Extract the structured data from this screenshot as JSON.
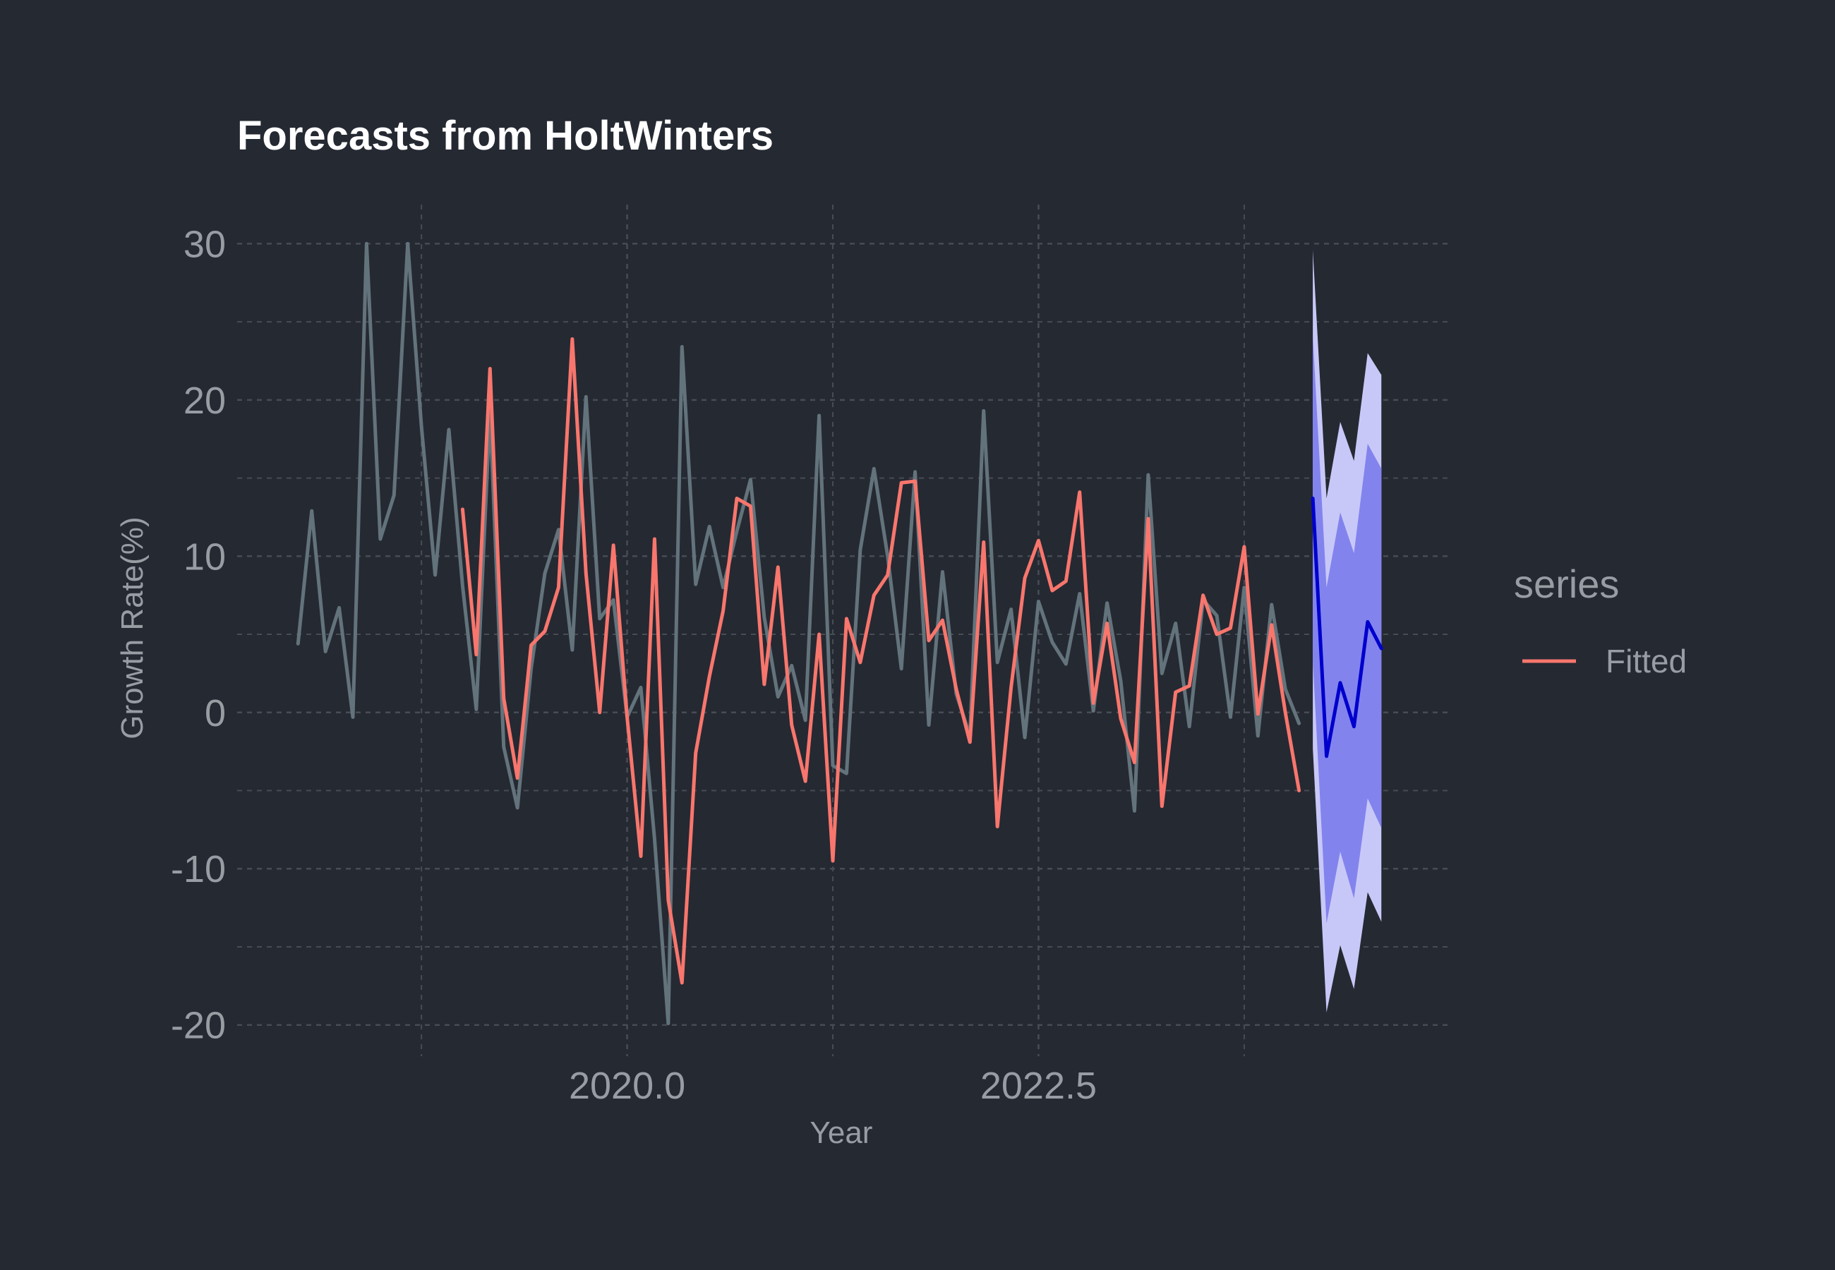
{
  "chart_data": {
    "type": "line",
    "title": "Forecasts from HoltWinters",
    "xlabel": "Year",
    "ylabel": "Growth Rate(%)",
    "xlim": [
      2017.63,
      2024.99
    ],
    "ylim": [
      -22,
      32.5
    ],
    "x_ticks": [
      2020.0,
      2022.5
    ],
    "x_tick_labels": [
      "2020.0",
      "2022.5"
    ],
    "x_minor_ticks": [
      2018.75,
      2021.25,
      2023.75
    ],
    "y_ticks": [
      -20,
      -10,
      0,
      10,
      20,
      30
    ],
    "y_tick_labels": [
      "-20",
      "-10",
      "0",
      "10",
      "20",
      "30"
    ],
    "y_minor_ticks": [
      -15,
      -5,
      5,
      15,
      25
    ],
    "grid": true,
    "legend": {
      "title": "series",
      "position": "right",
      "entries": [
        {
          "label": "Fitted",
          "color": "#F8766D"
        }
      ]
    },
    "colors": {
      "observed": "#63737c",
      "fitted": "#F8766D",
      "forecast": "#0000CD",
      "band80": "#8383EE",
      "band95": "#C8C8F8",
      "background": "#252932",
      "grid": "#474c55"
    },
    "series": [
      {
        "name": "",
        "role": "observed",
        "x_start": 2018.0,
        "x_step": 0.083333,
        "values": [
          4.4,
          12.9,
          3.9,
          6.7,
          -0.3,
          30.0,
          11.1,
          13.9,
          30.0,
          18.3,
          8.8,
          18.1,
          8.1,
          0.2,
          19.3,
          -2.2,
          -6.1,
          2.8,
          8.9,
          11.7,
          4.0,
          20.2,
          6.0,
          7.2,
          -0.3,
          1.6,
          -8.1,
          -19.9,
          23.4,
          8.2,
          11.9,
          8.0,
          11.6,
          14.9,
          6.1,
          1.0,
          3.0,
          -0.5,
          19.0,
          -3.4,
          -3.9,
          10.4,
          15.6,
          10.0,
          2.8,
          15.4,
          -0.8,
          9.0,
          1.2,
          -1.5,
          19.3,
          3.2,
          6.6,
          -1.6,
          7.1,
          4.5,
          3.1,
          7.6,
          0.1,
          7.0,
          2.0,
          -6.3,
          15.2,
          2.5,
          5.7,
          -0.9,
          7.2,
          6.2,
          -0.3,
          8.0,
          -1.5,
          6.9,
          1.5,
          -0.7
        ]
      },
      {
        "name": "Fitted",
        "role": "fitted",
        "x_start": 2019.0,
        "x_step": 0.083333,
        "values": [
          13.0,
          3.7,
          22.0,
          0.9,
          -4.2,
          4.3,
          5.2,
          8.0,
          23.9,
          8.9,
          0.0,
          10.7,
          -0.3,
          -9.2,
          11.1,
          -12.0,
          -17.3,
          -2.6,
          2.3,
          6.5,
          13.7,
          13.2,
          1.8,
          9.3,
          -0.8,
          -4.4,
          5.0,
          -9.5,
          6.0,
          3.2,
          7.5,
          8.8,
          14.7,
          14.8,
          4.6,
          5.9,
          1.5,
          -1.9,
          10.9,
          -7.3,
          1.6,
          8.6,
          11.0,
          7.8,
          8.4,
          14.1,
          0.6,
          5.7,
          -0.4,
          -3.2,
          12.4,
          -6.0,
          1.3,
          1.7,
          7.5,
          5.0,
          5.4,
          10.6,
          -0.1,
          5.6,
          0.0,
          -5.0
        ]
      }
    ],
    "forecast": {
      "x_start": 2024.167,
      "x_step": 0.083333,
      "values": [
        13.7,
        -2.8,
        1.9,
        -0.9,
        5.8,
        4.1
      ],
      "lo80": [
        3.3,
        -13.5,
        -8.9,
        -11.9,
        -5.5,
        -7.4
      ],
      "hi80": [
        24.1,
        8.0,
        12.8,
        10.2,
        17.2,
        15.6
      ],
      "lo95": [
        -2.3,
        -19.2,
        -14.9,
        -17.7,
        -11.5,
        -13.4
      ],
      "hi95": [
        29.6,
        13.7,
        18.6,
        16.1,
        23.0,
        21.6
      ]
    }
  }
}
